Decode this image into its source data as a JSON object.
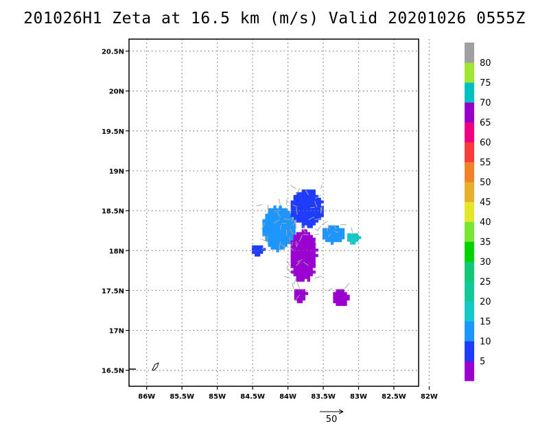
{
  "title": "201026H1  Zeta at 16.5 km (m/s) Valid 20201026  0555Z",
  "chart_data": {
    "type": "heatmap",
    "map_extent": {
      "lon": [
        -86.25,
        -82.15
      ],
      "lat": [
        16.3,
        20.65
      ]
    },
    "x_ticks": [
      {
        "value": -86.0,
        "label": "86W"
      },
      {
        "value": -85.5,
        "label": "85.5W"
      },
      {
        "value": -85.0,
        "label": "85W"
      },
      {
        "value": -84.5,
        "label": "84.5W"
      },
      {
        "value": -84.0,
        "label": "84W"
      },
      {
        "value": -83.5,
        "label": "83.5W"
      },
      {
        "value": -83.0,
        "label": "83W"
      },
      {
        "value": -82.5,
        "label": "82.5W"
      },
      {
        "value": -82.0,
        "label": "82W"
      }
    ],
    "y_ticks": [
      {
        "value": 16.5,
        "label": "16.5N"
      },
      {
        "value": 17.0,
        "label": "17N"
      },
      {
        "value": 17.5,
        "label": "17.5N"
      },
      {
        "value": 18.0,
        "label": "18N"
      },
      {
        "value": 18.5,
        "label": "18.5N"
      },
      {
        "value": 19.0,
        "label": "19N"
      },
      {
        "value": 19.5,
        "label": "19.5N"
      },
      {
        "value": 20.0,
        "label": "20N"
      },
      {
        "value": 20.5,
        "label": "20.5N"
      }
    ],
    "grid": true,
    "colorbar": {
      "labels": [
        "5",
        "10",
        "15",
        "20",
        "25",
        "30",
        "35",
        "40",
        "45",
        "50",
        "55",
        "60",
        "65",
        "70",
        "75",
        "80"
      ],
      "colors": [
        "#9a00d0",
        "#1e3cff",
        "#1e96ff",
        "#14c8c8",
        "#14c89a",
        "#14c878",
        "#00d200",
        "#78e632",
        "#e6e628",
        "#e6af2d",
        "#f08228",
        "#fa3c3c",
        "#f00082",
        "#9600c8",
        "#00c0c0",
        "#a0e632",
        "#a0a0a0"
      ]
    },
    "wind_reference": {
      "label": "50",
      "value": 50
    },
    "wind_regions": [
      {
        "color": "#1e96ff",
        "lon": [
          -84.4,
          -83.9
        ],
        "lat": [
          18.0,
          18.6
        ]
      },
      {
        "color": "#1e3cff",
        "lon": [
          -84.0,
          -83.5
        ],
        "lat": [
          18.3,
          18.8
        ]
      },
      {
        "color": "#9a00d0",
        "lon": [
          -84.0,
          -83.6
        ],
        "lat": [
          17.6,
          18.3
        ]
      },
      {
        "color": "#1e96ff",
        "lon": [
          -83.55,
          -83.2
        ],
        "lat": [
          18.1,
          18.35
        ]
      },
      {
        "color": "#14c8c8",
        "lon": [
          -83.2,
          -83.0
        ],
        "lat": [
          18.1,
          18.25
        ]
      },
      {
        "color": "#1e3cff",
        "lon": [
          -84.55,
          -84.35
        ],
        "lat": [
          17.95,
          18.1
        ]
      },
      {
        "color": "#9a00d0",
        "lon": [
          -83.95,
          -83.75
        ],
        "lat": [
          17.35,
          17.55
        ]
      },
      {
        "color": "#9a00d0",
        "lon": [
          -83.4,
          -83.15
        ],
        "lat": [
          17.3,
          17.55
        ]
      }
    ]
  }
}
